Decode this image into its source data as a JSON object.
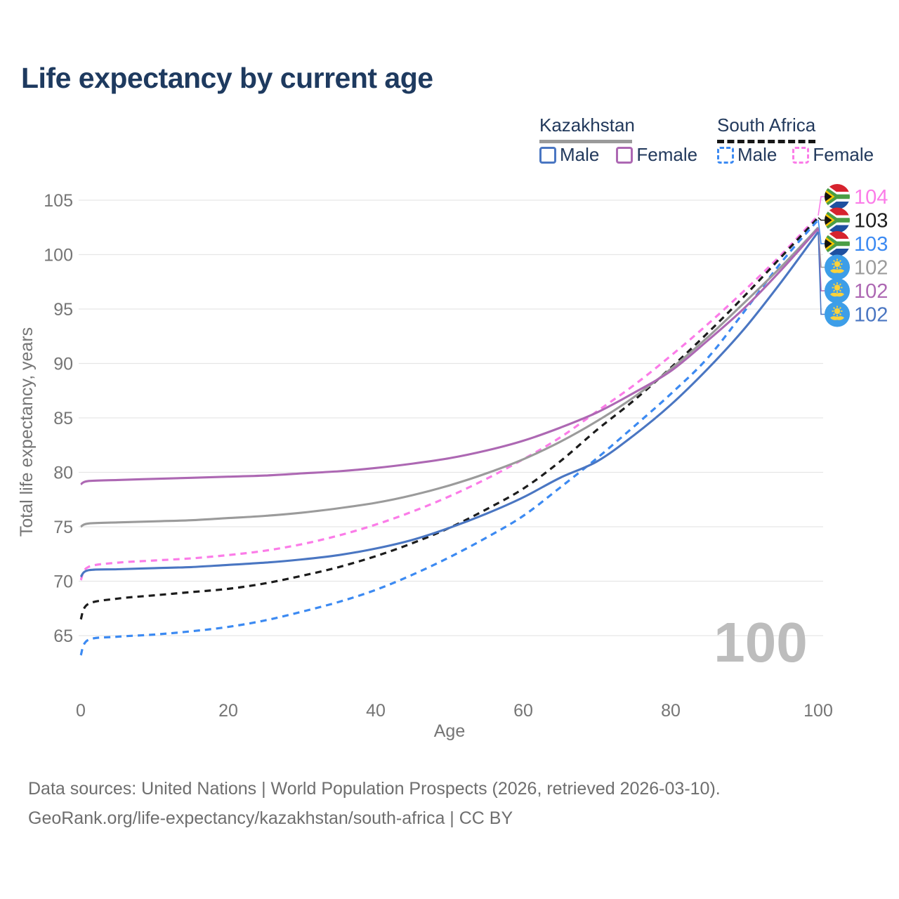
{
  "header": {
    "title": "Life expectancy by current age"
  },
  "legend": {
    "groups": [
      {
        "label": "Kazakhstan",
        "rule_style": "solid",
        "rule_color": "#9a9a9a",
        "items": [
          {
            "label": "Male"
          },
          {
            "label": "Female"
          }
        ]
      },
      {
        "label": "South Africa",
        "rule_style": "dashed",
        "rule_color": "#161616",
        "items": [
          {
            "label": "Male"
          },
          {
            "label": "Female"
          }
        ]
      }
    ]
  },
  "chart_data": {
    "type": "line",
    "title": "Life expectancy by current age",
    "xlabel": "Age",
    "ylabel": "Total life expectancy, years",
    "xlim": [
      0,
      100
    ],
    "ylim": [
      65,
      105
    ],
    "x_ticks": [
      0,
      20,
      40,
      60,
      80,
      100
    ],
    "y_ticks": [
      65,
      70,
      75,
      80,
      85,
      90,
      95,
      100,
      105
    ],
    "grid": "horizontal",
    "legend_position": "top-right",
    "watermark": "100",
    "x": [
      0,
      1,
      5,
      10,
      15,
      20,
      25,
      30,
      35,
      40,
      45,
      50,
      55,
      60,
      65,
      70,
      75,
      80,
      85,
      90,
      95,
      100
    ],
    "series": [
      {
        "name": "South Africa Female",
        "country": "South Africa",
        "sex": "Female",
        "color": "#fb7ce8",
        "dash": "dashed",
        "flag": "za",
        "end_label": "104",
        "values": [
          70.1,
          71.3,
          71.7,
          71.9,
          72.1,
          72.4,
          72.8,
          73.4,
          74.2,
          75.2,
          76.4,
          77.8,
          79.4,
          81.2,
          83.2,
          85.6,
          88.0,
          90.7,
          93.6,
          96.7,
          100.0,
          103.6
        ]
      },
      {
        "name": "South Africa Total",
        "country": "South Africa",
        "sex": "Both",
        "color": "#1c1c1c",
        "dash": "dashed",
        "flag": "za",
        "end_label": "103",
        "values": [
          66.5,
          67.9,
          68.4,
          68.7,
          69.0,
          69.3,
          69.8,
          70.5,
          71.3,
          72.3,
          73.5,
          74.9,
          76.6,
          78.5,
          81.0,
          83.9,
          86.6,
          89.6,
          92.8,
          96.2,
          99.8,
          103.4
        ]
      },
      {
        "name": "South Africa Male",
        "country": "South Africa",
        "sex": "Male",
        "color": "#3c8af2",
        "dash": "dashed",
        "flag": "za",
        "end_label": "103",
        "values": [
          63.2,
          64.6,
          64.9,
          65.1,
          65.4,
          65.8,
          66.4,
          67.2,
          68.1,
          69.2,
          70.6,
          72.2,
          74.0,
          76.0,
          78.6,
          81.3,
          84.2,
          87.2,
          90.5,
          94.8,
          99.3,
          103.2
        ]
      },
      {
        "name": "Kazakhstan Total",
        "country": "Kazakhstan",
        "sex": "Both",
        "color": "#9b9b9b",
        "dash": "solid",
        "flag": "kz",
        "end_label": "102",
        "values": [
          75.0,
          75.3,
          75.4,
          75.5,
          75.6,
          75.8,
          76.0,
          76.3,
          76.7,
          77.2,
          77.9,
          78.8,
          79.9,
          81.2,
          82.8,
          84.7,
          86.9,
          89.5,
          92.4,
          95.6,
          98.9,
          102.5
        ]
      },
      {
        "name": "Kazakhstan Female",
        "country": "Kazakhstan",
        "sex": "Female",
        "color": "#ad68b3",
        "dash": "solid",
        "flag": "kz",
        "end_label": "102",
        "values": [
          78.9,
          79.2,
          79.3,
          79.4,
          79.5,
          79.6,
          79.7,
          79.9,
          80.1,
          80.4,
          80.8,
          81.3,
          82.0,
          82.9,
          84.1,
          85.5,
          87.3,
          89.3,
          92.1,
          95.1,
          98.6,
          102.4
        ]
      },
      {
        "name": "Kazakhstan Male",
        "country": "Kazakhstan",
        "sex": "Male",
        "color": "#4a76c2",
        "dash": "solid",
        "flag": "kz",
        "end_label": "102",
        "values": [
          70.4,
          71.0,
          71.1,
          71.2,
          71.3,
          71.5,
          71.7,
          72.0,
          72.4,
          73.0,
          73.8,
          74.9,
          76.2,
          77.7,
          79.5,
          81.0,
          83.4,
          86.2,
          89.5,
          93.2,
          97.5,
          102.1
        ]
      }
    ]
  },
  "footer": {
    "line1": "Data sources: United Nations | World Population Prospects (2026, retrieved 2026-03-10).",
    "line2": "GeoRank.org/life-expectancy/kazakhstan/south-africa | CC BY"
  }
}
